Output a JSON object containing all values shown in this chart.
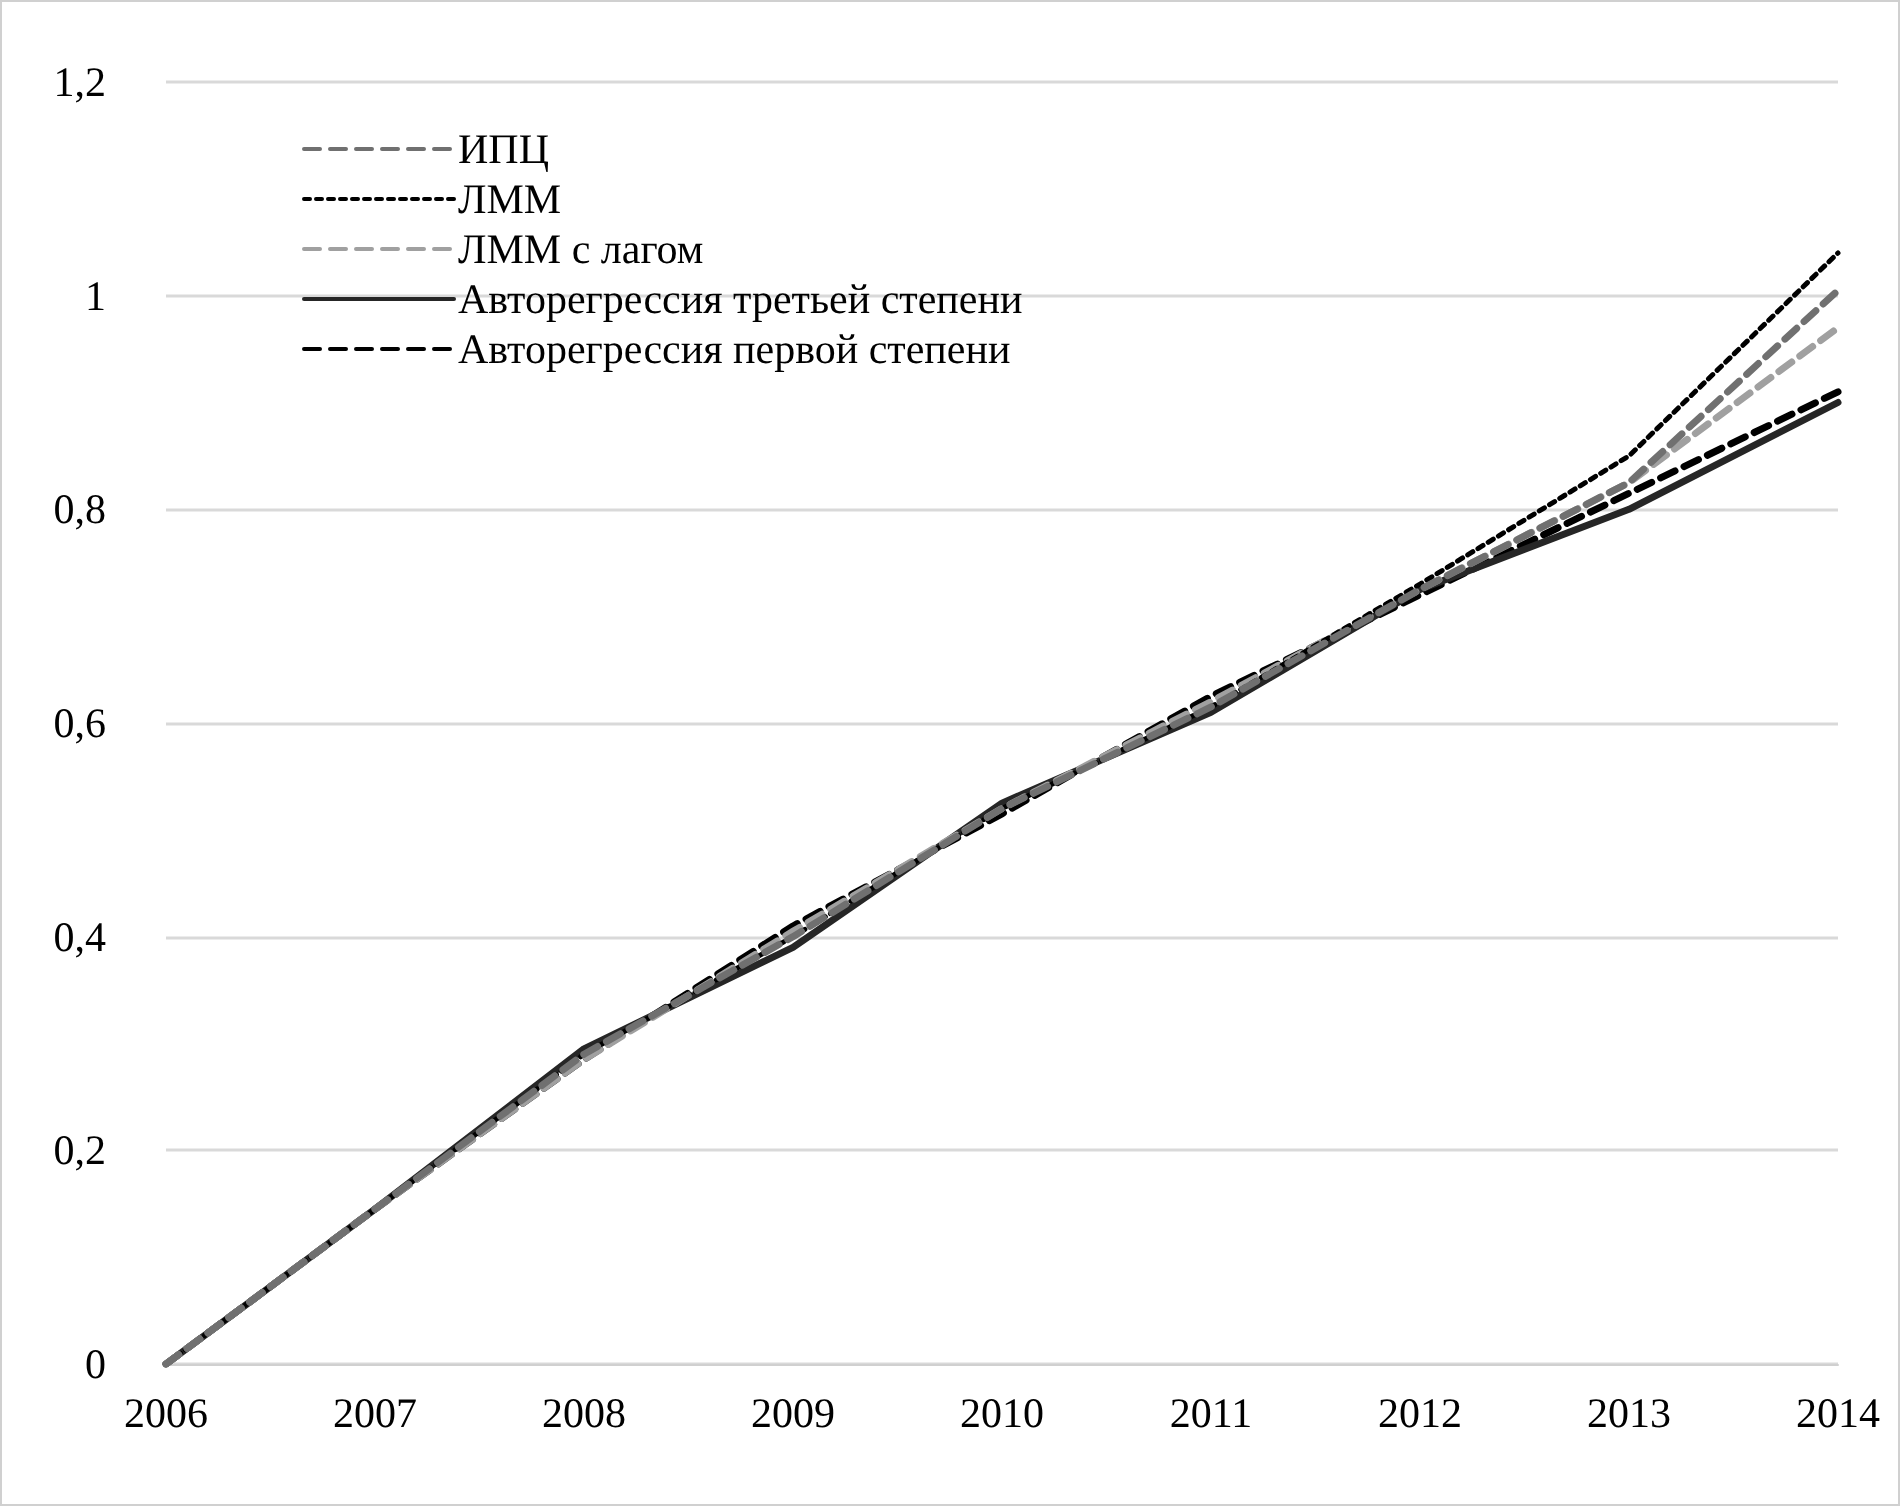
{
  "chart_data": {
    "type": "line",
    "categories": [
      "2006",
      "2007",
      "2008",
      "2009",
      "2010",
      "2011",
      "2012",
      "2013",
      "2014"
    ],
    "series": [
      {
        "name": "ИПЦ",
        "color": "#707070",
        "line_style": "dashed",
        "values": [
          0,
          0.145,
          0.29,
          0.4,
          0.52,
          0.615,
          0.725,
          0.825,
          1.005
        ]
      },
      {
        "name": "ЛММ",
        "color": "#000000",
        "line_style": "dotted",
        "values": [
          0,
          0.145,
          0.29,
          0.4,
          0.52,
          0.615,
          0.73,
          0.85,
          1.04
        ]
      },
      {
        "name": "ЛММ с лагом",
        "color": "#a0a0a0",
        "line_style": "dashed",
        "values": [
          0,
          0.145,
          0.285,
          0.405,
          0.52,
          0.62,
          0.725,
          0.825,
          0.97
        ]
      },
      {
        "name": "Авторегрессия третьей степени",
        "color": "#262626",
        "line_style": "solid",
        "values": [
          0,
          0.145,
          0.295,
          0.39,
          0.525,
          0.61,
          0.725,
          0.8,
          0.9
        ]
      },
      {
        "name": "Авторегрессия первой степени",
        "color": "#000000",
        "line_style": "dashed",
        "values": [
          0,
          0.145,
          0.285,
          0.41,
          0.515,
          0.625,
          0.72,
          0.815,
          0.91
        ]
      }
    ],
    "ylim": [
      0,
      1.2
    ],
    "yticks": [
      0,
      {
        "value": 0.2,
        "label": "0,2"
      },
      {
        "value": 0.4,
        "label": "0,4"
      },
      {
        "value": 0.6,
        "label": "0,6"
      },
      {
        "value": 0.8,
        "label": "0,8"
      },
      1,
      {
        "value": 1.2,
        "label": "1,2"
      }
    ],
    "grid": "y",
    "legend": "top left",
    "marker": "none"
  }
}
